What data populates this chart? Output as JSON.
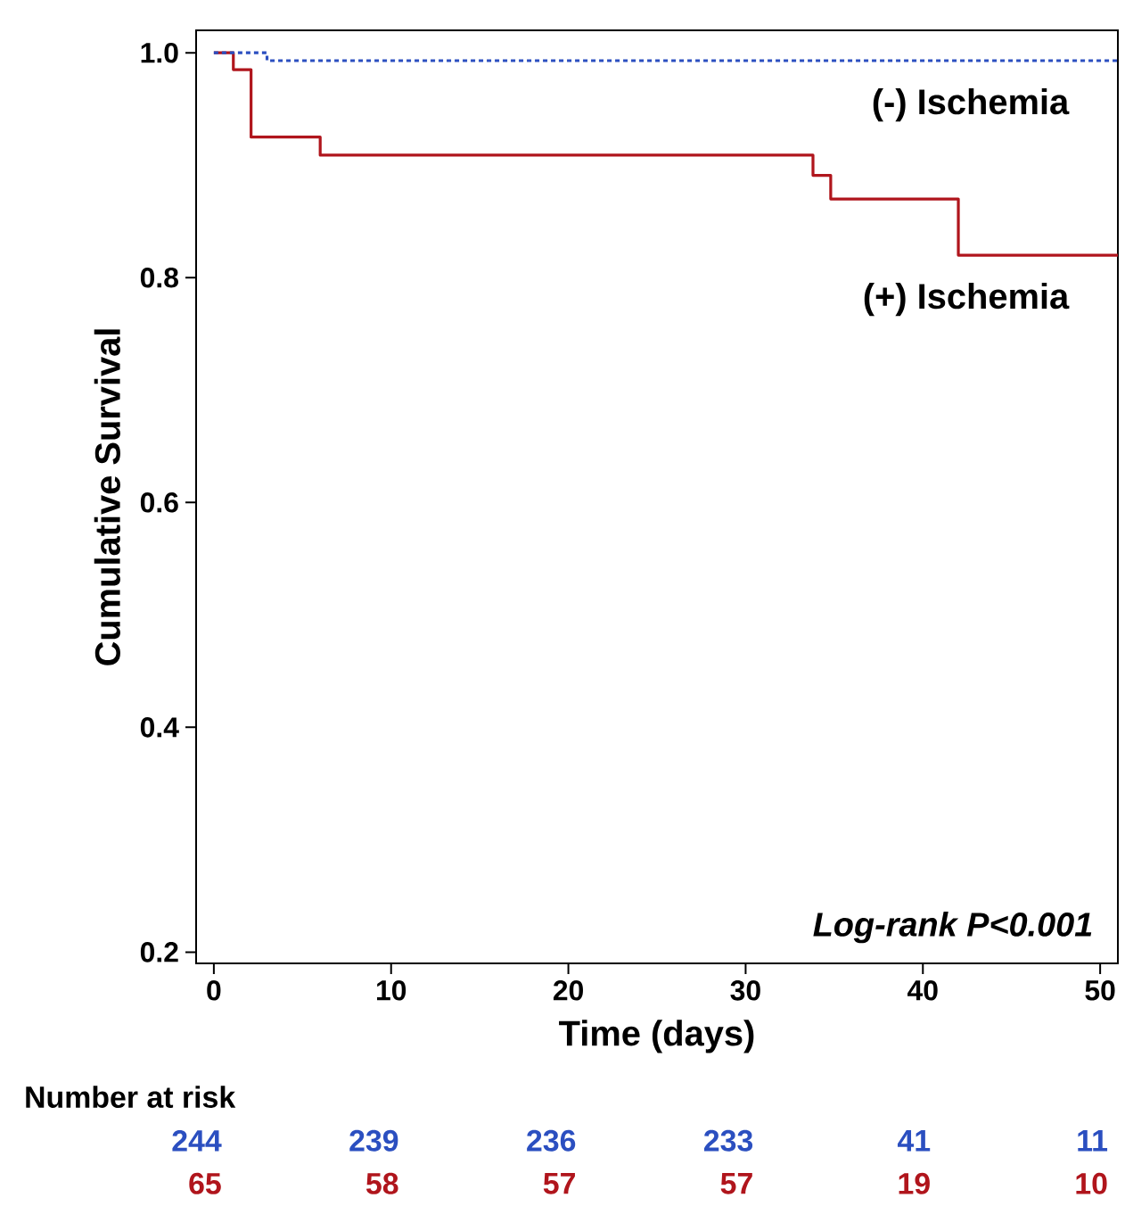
{
  "chart_data": {
    "type": "step",
    "xlabel": "Time (days)",
    "ylabel": "Cumulative Survival",
    "xlim": [
      -1,
      51
    ],
    "ylim": [
      0.19,
      1.02
    ],
    "xticks": [
      0,
      10,
      20,
      30,
      40,
      50
    ],
    "yticks": [
      0.2,
      0.4,
      0.6,
      0.8,
      {
        "value": 1.0,
        "label": "1.0"
      }
    ],
    "grid": false,
    "legend": false,
    "series": [
      {
        "name": "(-) Ischemia",
        "color": "#2b4fc0",
        "line_style": "dotted",
        "x": [
          0,
          3,
          3,
          51
        ],
        "values": [
          1.0,
          1.0,
          0.993,
          0.993
        ]
      },
      {
        "name": "(+) Ischemia",
        "color": "#b0151c",
        "line_style": "solid",
        "x": [
          0,
          1.1,
          1.1,
          2.1,
          2.1,
          6,
          6,
          33.8,
          33.8,
          34.8,
          34.8,
          42,
          42,
          51
        ],
        "values": [
          1.0,
          1.0,
          0.985,
          0.985,
          0.925,
          0.925,
          0.909,
          0.909,
          0.891,
          0.891,
          0.87,
          0.87,
          0.82,
          0.82
        ]
      }
    ],
    "annotations": [
      "Log-rank P<0.001",
      "Number at risk",
      "244",
      "239",
      "236",
      "233",
      "41",
      "11",
      "65",
      "58",
      "57",
      "57",
      "19",
      "10"
    ]
  }
}
